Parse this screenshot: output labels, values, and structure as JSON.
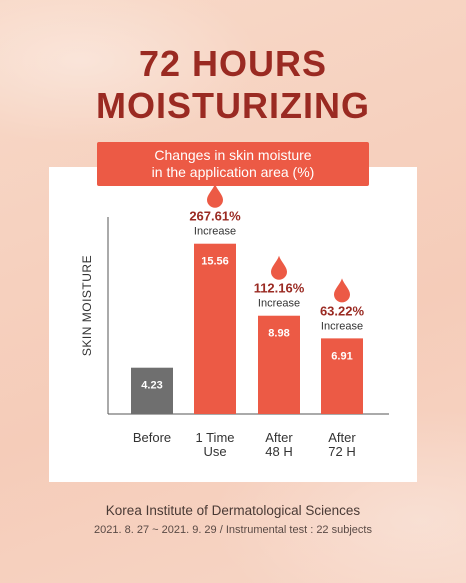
{
  "heading": {
    "line1": "72 HOURS",
    "line2": "MOISTURIZING"
  },
  "banner": {
    "line1": "Changes in skin moisture",
    "line2": "in the application area (%)"
  },
  "chart_data": {
    "type": "bar",
    "title": "",
    "ylabel": "SKIN MOISTURE",
    "categories": [
      [
        "Before"
      ],
      [
        "1 Time",
        "Use"
      ],
      [
        "After",
        "48 H"
      ],
      [
        "After",
        "72 H"
      ]
    ],
    "values": [
      4.23,
      15.56,
      8.98,
      6.91
    ],
    "value_labels": [
      "4.23",
      "15.56",
      "8.98",
      "6.91"
    ],
    "increase_pct": [
      null,
      "267.61%",
      "112.16%",
      "63.22%"
    ],
    "increase_word": "Increase",
    "ylim": [
      0,
      18
    ],
    "grid": false,
    "legend": "none",
    "colors": {
      "baseline": "#6f6f6f",
      "bars": "#ec5a45",
      "drop": "#ec5a45",
      "pct_text": "#9a2a22"
    }
  },
  "footer": {
    "institute": "Korea Institute of Dermatological Sciences",
    "details": "2021. 8. 27 ~ 2021. 9. 29 / Instrumental test : 22 subjects"
  }
}
